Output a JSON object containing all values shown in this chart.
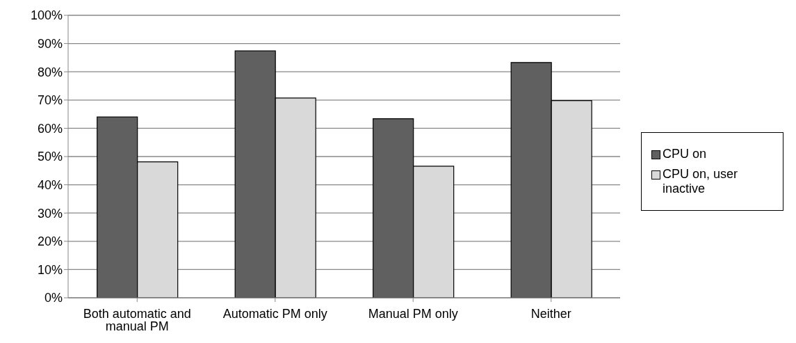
{
  "chart_data": {
    "type": "bar",
    "categories": [
      "Both automatic and manual PM",
      "Automatic PM only",
      "Manual PM only",
      "Neither"
    ],
    "series": [
      {
        "name": "CPU on",
        "color": "#606060",
        "values": [
          64,
          87.4,
          63.4,
          83.3
        ]
      },
      {
        "name": "CPU on, user inactive",
        "color": "#d9d9d9",
        "values": [
          48.1,
          70.7,
          46.6,
          69.8
        ]
      }
    ],
    "ylim": [
      0,
      100
    ],
    "yticks": [
      {
        "value": 0,
        "label": "0%"
      },
      {
        "value": 10,
        "label": "10%"
      },
      {
        "value": 20,
        "label": "20%"
      },
      {
        "value": 30,
        "label": "30%"
      },
      {
        "value": 40,
        "label": "40%"
      },
      {
        "value": 50,
        "label": "50%"
      },
      {
        "value": 60,
        "label": "60%"
      },
      {
        "value": 70,
        "label": "70%"
      },
      {
        "value": 80,
        "label": "80%"
      },
      {
        "value": 90,
        "label": "90%"
      },
      {
        "value": 100,
        "label": "100%"
      }
    ],
    "grid": "y",
    "legend": "right"
  }
}
